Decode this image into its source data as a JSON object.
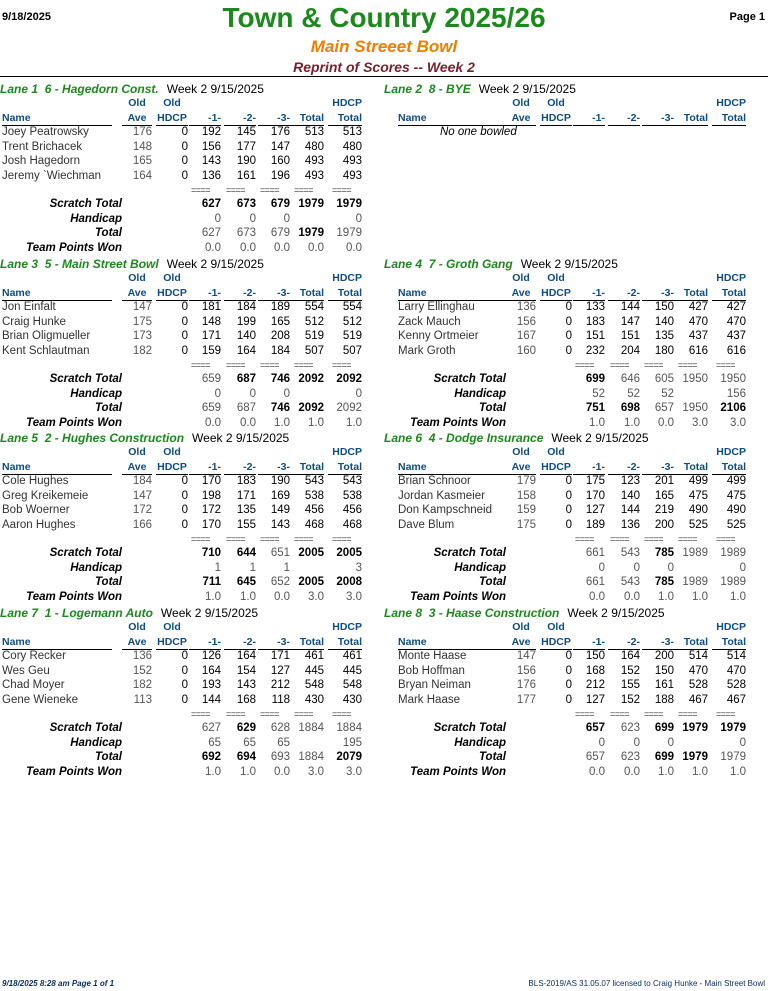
{
  "header": {
    "date": "9/18/2025",
    "title": "Town & Country 2025/26",
    "page": "Page 1",
    "subtitle": "Main Streeet Bowl",
    "subtitle2": "Reprint of Scores -- Week 2"
  },
  "columns": {
    "old_top": "Old",
    "ave": "Ave",
    "hdcp": "HDCP",
    "name": "Name",
    "g1": "-1-",
    "g2": "-2-",
    "g3": "-3-",
    "total": "Total",
    "hdcp_total_top": "HDCP",
    "hdcp_total": "Total"
  },
  "row_labels": {
    "scratch": "Scratch Total",
    "handicap": "Handicap",
    "total": "Total",
    "points": "Team Points Won"
  },
  "lanes": [
    {
      "lane": "Lane 1",
      "team": "6 - Hagedorn Const.",
      "week": "Week 2  9/15/2025",
      "bowlers": [
        {
          "name": "Joey Peatrowsky",
          "ave": "176",
          "hdcp": "0",
          "g1": "192",
          "g2": "145",
          "g3": "176",
          "total": "513",
          "hdcp_total": "513"
        },
        {
          "name": "Trent Brichacek",
          "ave": "148",
          "hdcp": "0",
          "g1": "156",
          "g2": "177",
          "g3": "147",
          "total": "480",
          "hdcp_total": "480"
        },
        {
          "name": "Josh Hagedorn",
          "ave": "165",
          "hdcp": "0",
          "g1": "143",
          "g2": "190",
          "g3": "160",
          "total": "493",
          "hdcp_total": "493"
        },
        {
          "name": "Jeremy `Wiechman",
          "ave": "164",
          "hdcp": "0",
          "g1": "136",
          "g2": "161",
          "g3": "196",
          "total": "493",
          "hdcp_total": "493"
        }
      ],
      "scratch": [
        "627",
        "673",
        "679",
        "1979",
        "1979"
      ],
      "scratch_bold": [
        true,
        true,
        true,
        true,
        true
      ],
      "handicap": [
        "0",
        "0",
        "0",
        "",
        "0"
      ],
      "total": [
        "627",
        "673",
        "679",
        "1979",
        "1979"
      ],
      "total_bold": [
        false,
        false,
        false,
        true,
        false
      ],
      "points": [
        "0.0",
        "0.0",
        "0.0",
        "0.0",
        "0.0"
      ]
    },
    {
      "lane": "Lane 2",
      "team": "8 - BYE",
      "week": "Week 2  9/15/2025",
      "no_bowlers": "No one bowled",
      "bowlers": []
    },
    {
      "lane": "Lane 3",
      "team": "5 - Main Street Bowl",
      "week": "Week 2  9/15/2025",
      "bowlers": [
        {
          "name": "Jon Einfalt",
          "ave": "147",
          "hdcp": "0",
          "g1": "181",
          "g2": "184",
          "g3": "189",
          "total": "554",
          "hdcp_total": "554"
        },
        {
          "name": "Craig Hunke",
          "ave": "175",
          "hdcp": "0",
          "g1": "148",
          "g2": "199",
          "g3": "165",
          "total": "512",
          "hdcp_total": "512"
        },
        {
          "name": "Brian Oligmueller",
          "ave": "173",
          "hdcp": "0",
          "g1": "171",
          "g2": "140",
          "g3": "208",
          "total": "519",
          "hdcp_total": "519"
        },
        {
          "name": "Kent Schlautman",
          "ave": "182",
          "hdcp": "0",
          "g1": "159",
          "g2": "164",
          "g3": "184",
          "total": "507",
          "hdcp_total": "507"
        }
      ],
      "scratch": [
        "659",
        "687",
        "746",
        "2092",
        "2092"
      ],
      "scratch_bold": [
        false,
        true,
        true,
        true,
        true
      ],
      "handicap": [
        "0",
        "0",
        "0",
        "",
        "0"
      ],
      "total": [
        "659",
        "687",
        "746",
        "2092",
        "2092"
      ],
      "total_bold": [
        false,
        false,
        true,
        true,
        false
      ],
      "points": [
        "0.0",
        "0.0",
        "1.0",
        "1.0",
        "1.0"
      ]
    },
    {
      "lane": "Lane 4",
      "team": "7 - Groth Gang",
      "week": "Week 2  9/15/2025",
      "bowlers": [
        {
          "name": "Larry Ellinghau",
          "ave": "136",
          "hdcp": "0",
          "g1": "133",
          "g2": "144",
          "g3": "150",
          "total": "427",
          "hdcp_total": "427"
        },
        {
          "name": "Zack Mauch",
          "ave": "156",
          "hdcp": "0",
          "g1": "183",
          "g2": "147",
          "g3": "140",
          "total": "470",
          "hdcp_total": "470"
        },
        {
          "name": "Kenny Ortmeier",
          "ave": "167",
          "hdcp": "0",
          "g1": "151",
          "g2": "151",
          "g3": "135",
          "total": "437",
          "hdcp_total": "437"
        },
        {
          "name": "Mark Groth",
          "ave": "160",
          "hdcp": "0",
          "g1": "232",
          "g2": "204",
          "g3": "180",
          "total": "616",
          "hdcp_total": "616"
        }
      ],
      "scratch": [
        "699",
        "646",
        "605",
        "1950",
        "1950"
      ],
      "scratch_bold": [
        true,
        false,
        false,
        false,
        false
      ],
      "handicap": [
        "52",
        "52",
        "52",
        "",
        "156"
      ],
      "total": [
        "751",
        "698",
        "657",
        "1950",
        "2106"
      ],
      "total_bold": [
        true,
        true,
        false,
        false,
        true
      ],
      "points": [
        "1.0",
        "1.0",
        "0.0",
        "3.0",
        "3.0"
      ]
    },
    {
      "lane": "Lane 5",
      "team": "2 - Hughes Construction",
      "week": "Week 2  9/15/2025",
      "bowlers": [
        {
          "name": "Cole Hughes",
          "ave": "184",
          "hdcp": "0",
          "g1": "170",
          "g2": "183",
          "g3": "190",
          "total": "543",
          "hdcp_total": "543"
        },
        {
          "name": "Greg Kreikemeie",
          "ave": "147",
          "hdcp": "0",
          "g1": "198",
          "g2": "171",
          "g3": "169",
          "total": "538",
          "hdcp_total": "538"
        },
        {
          "name": "Bob Woerner",
          "ave": "172",
          "hdcp": "0",
          "g1": "172",
          "g2": "135",
          "g3": "149",
          "total": "456",
          "hdcp_total": "456"
        },
        {
          "name": "Aaron Hughes",
          "ave": "166",
          "hdcp": "0",
          "g1": "170",
          "g2": "155",
          "g3": "143",
          "total": "468",
          "hdcp_total": "468"
        }
      ],
      "scratch": [
        "710",
        "644",
        "651",
        "2005",
        "2005"
      ],
      "scratch_bold": [
        true,
        true,
        false,
        true,
        true
      ],
      "handicap": [
        "1",
        "1",
        "1",
        "",
        "3"
      ],
      "total": [
        "711",
        "645",
        "652",
        "2005",
        "2008"
      ],
      "total_bold": [
        true,
        true,
        false,
        true,
        true
      ],
      "points": [
        "1.0",
        "1.0",
        "0.0",
        "3.0",
        "3.0"
      ]
    },
    {
      "lane": "Lane 6",
      "team": "4 - Dodge Insurance",
      "week": "Week 2  9/15/2025",
      "bowlers": [
        {
          "name": "Brian Schnoor",
          "ave": "179",
          "hdcp": "0",
          "g1": "175",
          "g2": "123",
          "g3": "201",
          "total": "499",
          "hdcp_total": "499"
        },
        {
          "name": "Jordan Kasmeier",
          "ave": "158",
          "hdcp": "0",
          "g1": "170",
          "g2": "140",
          "g3": "165",
          "total": "475",
          "hdcp_total": "475"
        },
        {
          "name": "Don Kampschneid",
          "ave": "159",
          "hdcp": "0",
          "g1": "127",
          "g2": "144",
          "g3": "219",
          "total": "490",
          "hdcp_total": "490"
        },
        {
          "name": "Dave Blum",
          "ave": "175",
          "hdcp": "0",
          "g1": "189",
          "g2": "136",
          "g3": "200",
          "total": "525",
          "hdcp_total": "525"
        }
      ],
      "scratch": [
        "661",
        "543",
        "785",
        "1989",
        "1989"
      ],
      "scratch_bold": [
        false,
        false,
        true,
        false,
        false
      ],
      "handicap": [
        "0",
        "0",
        "0",
        "",
        "0"
      ],
      "total": [
        "661",
        "543",
        "785",
        "1989",
        "1989"
      ],
      "total_bold": [
        false,
        false,
        true,
        false,
        false
      ],
      "points": [
        "0.0",
        "0.0",
        "1.0",
        "1.0",
        "1.0"
      ]
    },
    {
      "lane": "Lane 7",
      "team": "1 - Logemann Auto",
      "week": "Week 2  9/15/2025",
      "bowlers": [
        {
          "name": "Cory Recker",
          "ave": "136",
          "hdcp": "0",
          "g1": "126",
          "g2": "164",
          "g3": "171",
          "total": "461",
          "hdcp_total": "461"
        },
        {
          "name": "Wes Geu",
          "ave": "152",
          "hdcp": "0",
          "g1": "164",
          "g2": "154",
          "g3": "127",
          "total": "445",
          "hdcp_total": "445"
        },
        {
          "name": "Chad Moyer",
          "ave": "182",
          "hdcp": "0",
          "g1": "193",
          "g2": "143",
          "g3": "212",
          "total": "548",
          "hdcp_total": "548"
        },
        {
          "name": "Gene Wieneke",
          "ave": "113",
          "hdcp": "0",
          "g1": "144",
          "g2": "168",
          "g3": "118",
          "total": "430",
          "hdcp_total": "430"
        }
      ],
      "scratch": [
        "627",
        "629",
        "628",
        "1884",
        "1884"
      ],
      "scratch_bold": [
        false,
        true,
        false,
        false,
        false
      ],
      "handicap": [
        "65",
        "65",
        "65",
        "",
        "195"
      ],
      "total": [
        "692",
        "694",
        "693",
        "1884",
        "2079"
      ],
      "total_bold": [
        true,
        true,
        false,
        false,
        true
      ],
      "points": [
        "1.0",
        "1.0",
        "0.0",
        "3.0",
        "3.0"
      ]
    },
    {
      "lane": "Lane 8",
      "team": "3 - Haase Construction",
      "week": "Week 2  9/15/2025",
      "bowlers": [
        {
          "name": "Monte Haase",
          "ave": "147",
          "hdcp": "0",
          "g1": "150",
          "g2": "164",
          "g3": "200",
          "total": "514",
          "hdcp_total": "514"
        },
        {
          "name": "Bob Hoffman",
          "ave": "156",
          "hdcp": "0",
          "g1": "168",
          "g2": "152",
          "g3": "150",
          "total": "470",
          "hdcp_total": "470"
        },
        {
          "name": "Bryan Neiman",
          "ave": "176",
          "hdcp": "0",
          "g1": "212",
          "g2": "155",
          "g3": "161",
          "total": "528",
          "hdcp_total": "528"
        },
        {
          "name": "Mark Haase",
          "ave": "177",
          "hdcp": "0",
          "g1": "127",
          "g2": "152",
          "g3": "188",
          "total": "467",
          "hdcp_total": "467"
        }
      ],
      "scratch": [
        "657",
        "623",
        "699",
        "1979",
        "1979"
      ],
      "scratch_bold": [
        true,
        false,
        true,
        true,
        true
      ],
      "handicap": [
        "0",
        "0",
        "0",
        "",
        "0"
      ],
      "total": [
        "657",
        "623",
        "699",
        "1979",
        "1979"
      ],
      "total_bold": [
        false,
        false,
        true,
        true,
        false
      ],
      "points": [
        "0.0",
        "0.0",
        "1.0",
        "1.0",
        "1.0"
      ]
    }
  ],
  "footer": {
    "left": "9/18/2025  8:28 am  Page 1 of 1",
    "right": "BLS-2019/AS 31.05.07 licensed to Craig Hunke - Main Street Bowl"
  }
}
